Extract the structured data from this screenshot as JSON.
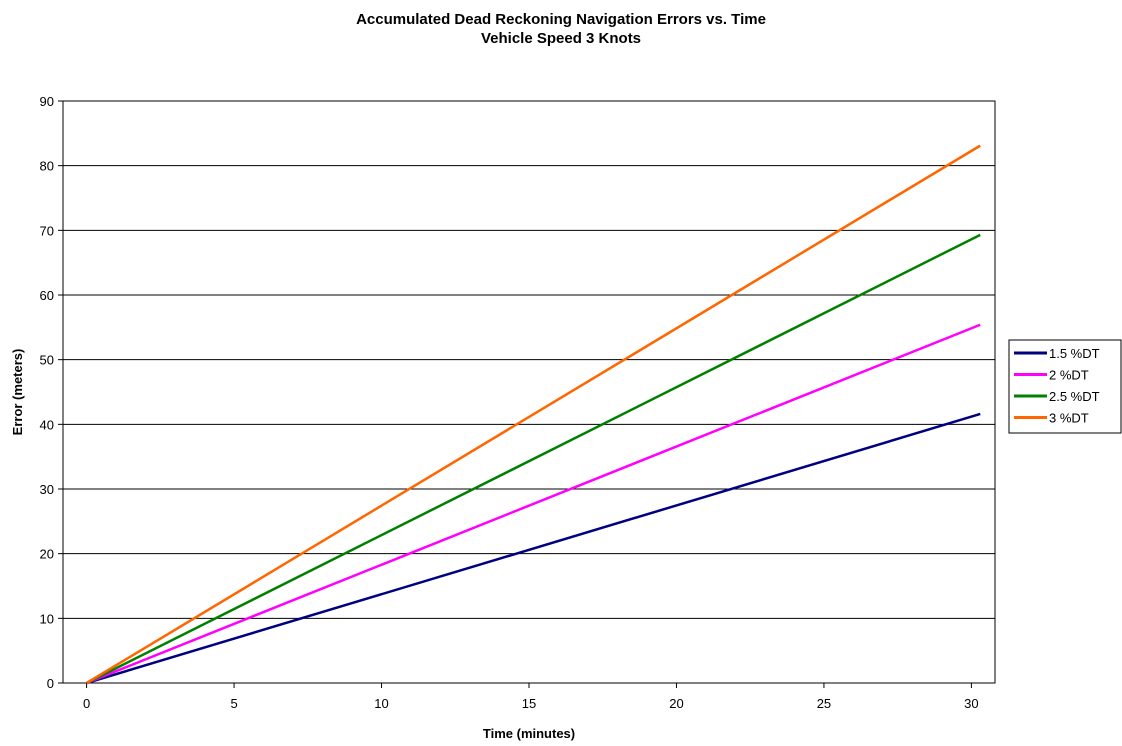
{
  "chart_data": {
    "type": "line",
    "title": "Accumulated Dead Reckoning Navigation Errors vs. Time",
    "subtitle": "Vehicle Speed 3 Knots",
    "xlabel": "Time (minutes)",
    "ylabel": "Error (meters)",
    "xlim": [
      -0.8,
      30.8
    ],
    "ylim": [
      0,
      90
    ],
    "xticks": [
      0,
      5,
      10,
      15,
      20,
      25,
      30
    ],
    "yticks": [
      0,
      10,
      20,
      30,
      40,
      50,
      60,
      70,
      80,
      90
    ],
    "grid": "horizontal",
    "legend_position": "right",
    "series": [
      {
        "name": "1.5 %DT",
        "color": "#000080",
        "x": [
          0,
          30.3
        ],
        "y": [
          0,
          41.6
        ]
      },
      {
        "name": "2 %DT",
        "color": "#ff00ff",
        "x": [
          0,
          30.3
        ],
        "y": [
          0,
          55.4
        ]
      },
      {
        "name": "2.5 %DT",
        "color": "#008000",
        "x": [
          0,
          30.3
        ],
        "y": [
          0,
          69.3
        ]
      },
      {
        "name": "3 %DT",
        "color": "#ff6600",
        "x": [
          0,
          30.3
        ],
        "y": [
          0,
          83.1
        ]
      }
    ]
  }
}
